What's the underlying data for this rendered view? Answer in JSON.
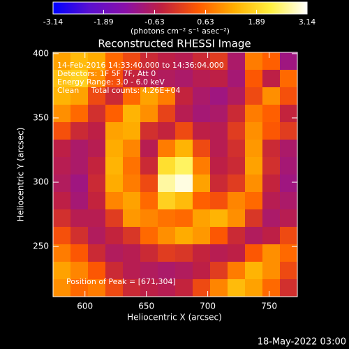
{
  "chart_data": {
    "type": "heatmap",
    "title": "Reconstructed RHESSI Image",
    "colorbar_label": "(photons cm⁻² s⁻¹ asec⁻²)",
    "xlabel": "Heliocentric X (arcsec)",
    "ylabel": "Heliocentric Y (arcsec)",
    "annotations": [
      "14-Feb-2016 14:33:40.000 to 14:36:04.000",
      "Detectors: 1F 5F 7F, Att 0",
      "Energy Range: 3.0 - 6.0 keV",
      "Clean     Total counts: 4.26E+04",
      "Position of Peak = [671,304]"
    ],
    "footer": "18-May-2022 03:00",
    "xlim": [
      574,
      773
    ],
    "ylim": [
      211,
      401
    ],
    "xticks": [
      600,
      650,
      700,
      750
    ],
    "yticks": [
      250,
      300,
      350,
      400
    ],
    "zlim": [
      -3.14,
      3.14
    ],
    "zticks": [
      -3.14,
      -1.89,
      -0.63,
      0.63,
      1.89,
      3.14
    ],
    "colorscale": [
      "#0000ff",
      "#5a10d0",
      "#8a10a8",
      "#c02040",
      "#ff5a00",
      "#ffb000",
      "#fff040",
      "#ffffff"
    ],
    "z": [
      [
        1.2,
        1.5,
        1.3,
        0.6,
        0.2,
        -0.3,
        -0.5,
        -0.6,
        -0.3,
        0.0,
        -0.8,
        0.8,
        0.5,
        -1.0
      ],
      [
        1.6,
        1.8,
        1.0,
        0.3,
        -0.4,
        -0.6,
        -0.7,
        -0.8,
        -0.6,
        -0.5,
        -0.9,
        0.4,
        -0.5,
        0.6
      ],
      [
        1.4,
        1.2,
        0.2,
        -0.3,
        0.6,
        1.2,
        0.8,
        -0.4,
        -0.8,
        -1.0,
        -0.7,
        0.2,
        1.0,
        0.3
      ],
      [
        1.0,
        0.6,
        -0.2,
        0.5,
        1.4,
        1.0,
        0.1,
        -0.6,
        -0.9,
        -0.8,
        -0.3,
        0.8,
        0.5,
        -0.4
      ],
      [
        0.3,
        -0.3,
        -0.5,
        1.2,
        1.3,
        -0.2,
        -0.4,
        0.2,
        -0.5,
        -0.6,
        0.0,
        1.0,
        0.4,
        0.0
      ],
      [
        -0.5,
        -0.8,
        -0.6,
        1.3,
        0.9,
        -0.6,
        0.8,
        1.4,
        0.2,
        -0.6,
        -0.2,
        1.1,
        -0.3,
        -0.8
      ],
      [
        -0.6,
        -0.8,
        -0.4,
        1.4,
        0.7,
        -0.3,
        2.0,
        2.4,
        0.8,
        -0.5,
        -0.3,
        1.2,
        -0.2,
        -0.9
      ],
      [
        -0.7,
        -1.0,
        -0.3,
        1.3,
        0.8,
        0.2,
        2.7,
        3.0,
        1.2,
        -0.3,
        0.0,
        1.0,
        -0.4,
        -1.0
      ],
      [
        -0.5,
        -0.9,
        -0.4,
        0.9,
        1.2,
        0.6,
        1.8,
        1.5,
        0.5,
        0.3,
        0.9,
        0.6,
        -0.6,
        -0.8
      ],
      [
        -0.2,
        -0.6,
        -0.6,
        0.0,
        1.1,
        0.9,
        0.7,
        0.6,
        1.2,
        1.4,
        1.0,
        -0.1,
        -0.8,
        -0.6
      ],
      [
        0.3,
        -0.2,
        -0.7,
        -0.4,
        -0.1,
        0.6,
        1.0,
        1.3,
        1.1,
        0.4,
        -0.3,
        -0.7,
        -0.5,
        0.2
      ],
      [
        0.8,
        0.4,
        -0.3,
        -0.7,
        -0.6,
        -0.3,
        0.0,
        -0.1,
        -0.4,
        -0.6,
        -0.5,
        0.4,
        1.0,
        0.6
      ],
      [
        1.2,
        0.9,
        0.4,
        -0.3,
        -0.6,
        -0.7,
        -0.8,
        -0.7,
        -0.5,
        0.0,
        0.8,
        1.4,
        1.0,
        0.2
      ],
      [
        1.0,
        0.6,
        0.8,
        0.2,
        -0.3,
        -0.5,
        -0.6,
        -0.4,
        0.2,
        0.9,
        1.5,
        1.2,
        0.6,
        -0.2
      ]
    ]
  }
}
